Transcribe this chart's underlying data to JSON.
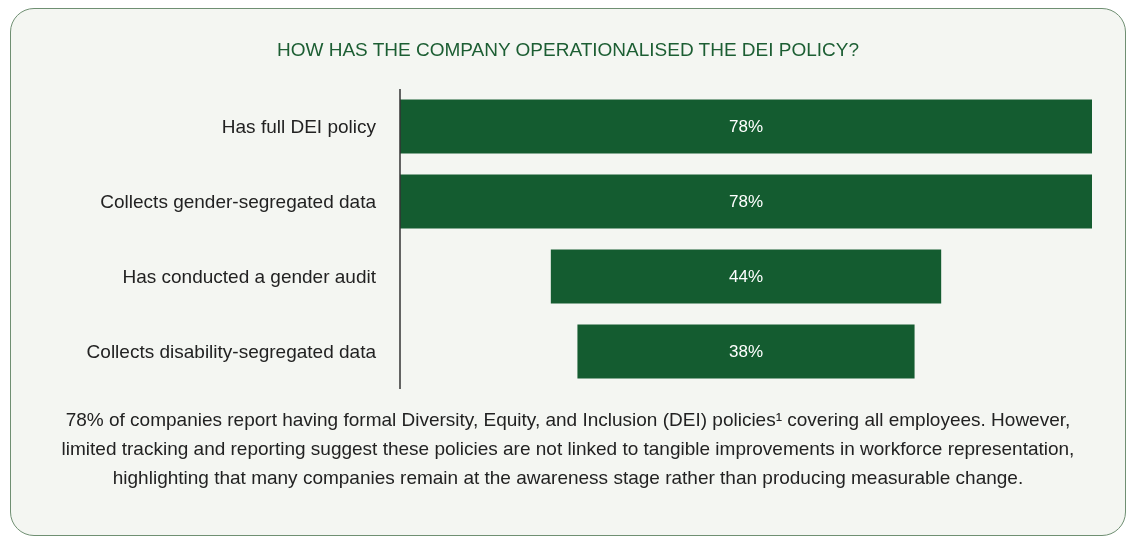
{
  "chart_data": {
    "type": "other",
    "title": "HOW HAS THE COMPANY OPERATIONALISED THE DEI POLICY?",
    "categories": [
      "Has full DEI policy",
      "Collects gender-segregated data",
      "Has conducted a gender audit",
      "Collects disability-segregated data"
    ],
    "values": [
      78,
      78,
      44,
      38
    ],
    "value_labels": [
      "78%",
      "78%",
      "44%",
      "38%"
    ],
    "color": "#145c30",
    "annotations": [
      "78% of companies report having formal Diversity, Equity, and Inclusion (DEI) policies¹ covering all employees. However, limited tracking and reporting suggest these policies are not linked to tangible improvements in workforce representation, highlighting that many companies remain at the awareness stage rather than producing measurable change."
    ]
  }
}
